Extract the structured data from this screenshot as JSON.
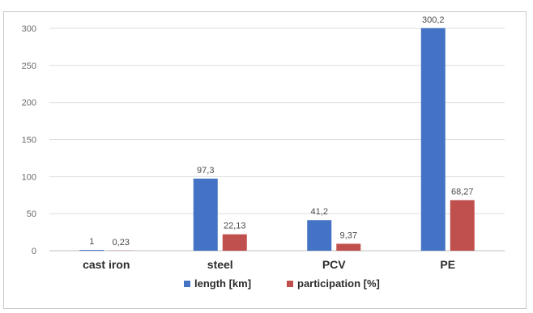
{
  "chart_data": {
    "type": "bar",
    "categories": [
      "cast iron",
      "steel",
      "PCV",
      "PE"
    ],
    "series": [
      {
        "name": "length [km]",
        "color": "#4472c4",
        "values": [
          1,
          97.3,
          41.2,
          300.2
        ],
        "labels": [
          "1",
          "97,3",
          "41,2",
          "300,2"
        ]
      },
      {
        "name": "participation [%]",
        "color": "#c0504d",
        "values": [
          0.23,
          22.13,
          9.37,
          68.27
        ],
        "labels": [
          "0,23",
          "22,13",
          "9,37",
          "68,27"
        ]
      }
    ],
    "yticks": [
      0,
      50,
      100,
      150,
      200,
      250,
      300
    ],
    "ylim": [
      0,
      300
    ],
    "grid": true,
    "legend_position": "bottom"
  }
}
